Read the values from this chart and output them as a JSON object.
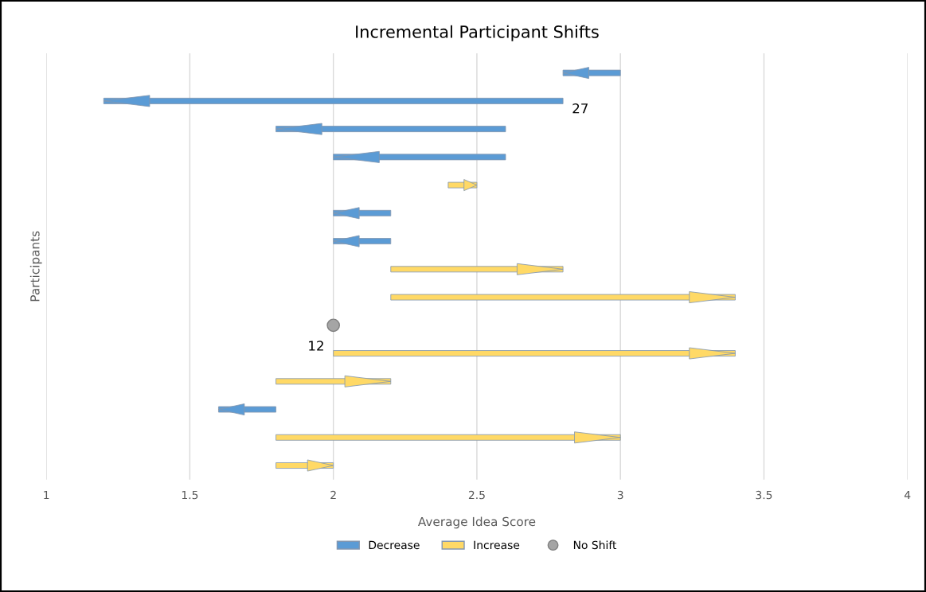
{
  "chart_data": {
    "type": "bar",
    "orientation": "horizontal",
    "title": "Incremental Participant Shifts",
    "xlabel": "Average Idea Score",
    "ylabel": "Participants",
    "categories": [
      null,
      null,
      null,
      null,
      null,
      null,
      null,
      null,
      null,
      null,
      null,
      null,
      null,
      null,
      null
    ],
    "series": [
      {
        "name": "Decrease",
        "type": "bar",
        "color": "#5b9bd5",
        "base": [
          3.0,
          2.8,
          2.6,
          2.6,
          null,
          2.2,
          2.2,
          null,
          null,
          null,
          null,
          null,
          1.8,
          null,
          null
        ],
        "values": [
          -0.2,
          -1.6,
          -0.8,
          -0.6,
          null,
          -0.2,
          -0.2,
          null,
          null,
          null,
          null,
          null,
          -0.2,
          null,
          null
        ]
      },
      {
        "name": "Increase",
        "type": "bar",
        "color": "#ffd966",
        "base": [
          null,
          null,
          null,
          null,
          2.4,
          null,
          null,
          2.2,
          2.2,
          null,
          2.0,
          1.8,
          null,
          1.8,
          1.8
        ],
        "values": [
          null,
          null,
          null,
          null,
          0.1,
          null,
          null,
          0.6,
          1.2,
          null,
          1.4,
          0.4,
          null,
          1.2,
          0.2
        ]
      },
      {
        "name": "No Shift",
        "type": "scatter",
        "color": "#a5a5a5",
        "values": [
          null,
          null,
          null,
          null,
          null,
          null,
          null,
          null,
          null,
          2.0,
          null,
          null,
          null,
          null,
          null
        ]
      }
    ],
    "annotations": [
      "27",
      "12"
    ],
    "xlim": [
      1,
      4
    ],
    "xticks": [
      1,
      1.5,
      2,
      2.5,
      3,
      3.5,
      4
    ],
    "grid": "x",
    "legend": "bottom",
    "tick_labels": "x",
    "marker": "circle"
  }
}
